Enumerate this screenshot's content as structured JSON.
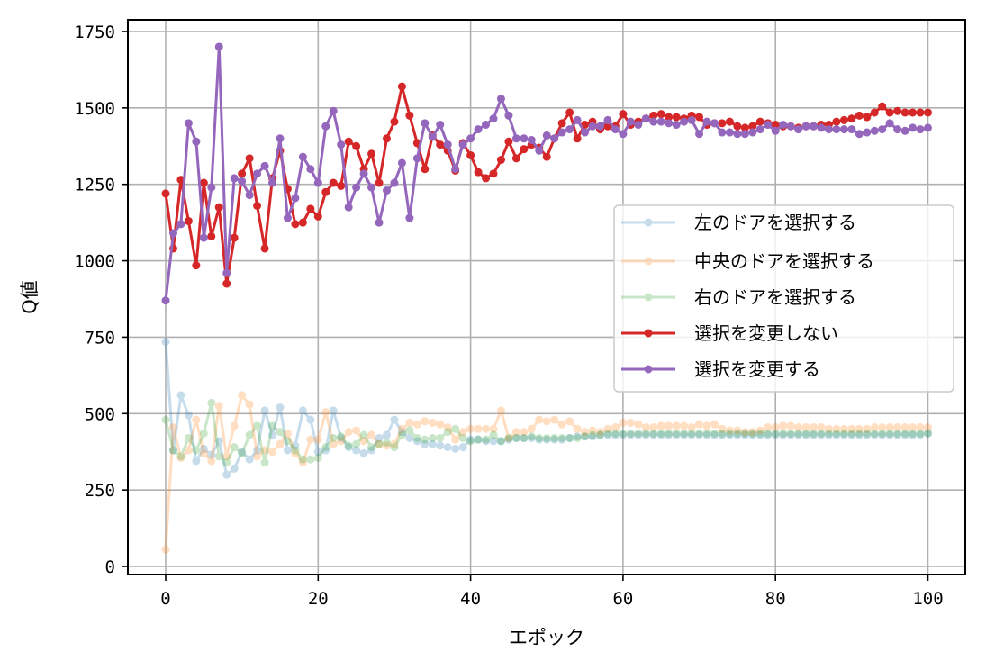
{
  "chart_data": {
    "type": "line",
    "title": "",
    "xlabel": "エポック",
    "ylabel": "Q値",
    "xlim": [
      -5,
      105
    ],
    "ylim": [
      -30,
      1780
    ],
    "xticks": [
      0,
      20,
      40,
      60,
      80,
      100
    ],
    "xtick_labels": [
      "0",
      "20",
      "40",
      "60",
      "80",
      "100"
    ],
    "yticks": [
      0,
      250,
      500,
      750,
      1000,
      1250,
      1500,
      1750
    ],
    "ytick_labels": [
      "0",
      "250",
      "500",
      "750",
      "1000",
      "1250",
      "1500",
      "1750"
    ],
    "grid": true,
    "legend_position": "center right",
    "x": [
      0,
      1,
      2,
      3,
      4,
      5,
      6,
      7,
      8,
      9,
      10,
      11,
      12,
      13,
      14,
      15,
      16,
      17,
      18,
      19,
      20,
      21,
      22,
      23,
      24,
      25,
      26,
      27,
      28,
      29,
      30,
      31,
      32,
      33,
      34,
      35,
      36,
      37,
      38,
      39,
      40,
      41,
      42,
      43,
      44,
      45,
      46,
      47,
      48,
      49,
      50,
      51,
      52,
      53,
      54,
      55,
      56,
      57,
      58,
      59,
      60,
      61,
      62,
      63,
      64,
      65,
      66,
      67,
      68,
      69,
      70,
      71,
      72,
      73,
      74,
      75,
      76,
      77,
      78,
      79,
      80,
      81,
      82,
      83,
      84,
      85,
      86,
      87,
      88,
      89,
      90,
      91,
      92,
      93,
      94,
      95,
      96,
      97,
      98,
      99,
      100
    ],
    "series": [
      {
        "name": "左のドアを選択する",
        "color": "#1f77b4",
        "alpha": 0.25,
        "values": [
          735,
          380,
          560,
          495,
          345,
          385,
          365,
          410,
          300,
          320,
          375,
          350,
          380,
          510,
          430,
          520,
          380,
          395,
          510,
          480,
          375,
          380,
          510,
          420,
          390,
          380,
          370,
          380,
          420,
          430,
          480,
          440,
          420,
          410,
          400,
          400,
          395,
          390,
          385,
          390,
          415,
          415,
          410,
          410,
          410,
          415,
          420,
          420,
          420,
          415,
          415,
          415,
          415,
          420,
          425,
          425,
          425,
          430,
          430,
          430,
          430,
          430,
          430,
          430,
          430,
          430,
          430,
          430,
          430,
          430,
          430,
          430,
          430,
          430,
          430,
          430,
          430,
          430,
          430,
          430,
          430,
          430,
          430,
          430,
          430,
          430,
          430,
          430,
          430,
          430,
          430,
          430,
          430,
          430,
          430,
          430,
          430,
          430,
          430,
          430,
          435
        ]
      },
      {
        "name": "中央のドアを選択する",
        "color": "#ff7f0e",
        "alpha": 0.25,
        "values": [
          55,
          455,
          355,
          380,
          480,
          370,
          345,
          525,
          360,
          460,
          560,
          530,
          360,
          380,
          375,
          400,
          435,
          370,
          340,
          415,
          415,
          505,
          400,
          410,
          440,
          445,
          410,
          430,
          400,
          395,
          400,
          450,
          470,
          465,
          475,
          470,
          465,
          455,
          415,
          440,
          450,
          450,
          450,
          450,
          510,
          420,
          440,
          440,
          450,
          480,
          475,
          480,
          465,
          475,
          450,
          440,
          445,
          440,
          450,
          455,
          470,
          470,
          465,
          455,
          455,
          460,
          460,
          460,
          460,
          455,
          465,
          460,
          465,
          450,
          445,
          445,
          440,
          440,
          445,
          455,
          455,
          460,
          460,
          455,
          455,
          455,
          455,
          450,
          450,
          450,
          450,
          450,
          450,
          455,
          455,
          455,
          455,
          455,
          455,
          455,
          455
        ]
      },
      {
        "name": "右のドアを選択する",
        "color": "#2ca02c",
        "alpha": 0.25,
        "values": [
          480,
          380,
          360,
          420,
          380,
          435,
          535,
          360,
          340,
          390,
          370,
          430,
          460,
          340,
          460,
          440,
          410,
          380,
          350,
          350,
          355,
          390,
          420,
          425,
          395,
          400,
          430,
          390,
          400,
          405,
          390,
          430,
          445,
          420,
          415,
          420,
          420,
          440,
          450,
          420,
          410,
          415,
          415,
          430,
          410,
          420,
          420,
          420,
          425,
          420,
          420,
          420,
          420,
          420,
          420,
          425,
          430,
          430,
          435,
          435,
          435,
          435,
          435,
          435,
          435,
          435,
          435,
          435,
          435,
          435,
          435,
          435,
          435,
          435,
          435,
          435,
          435,
          435,
          435,
          435,
          435,
          435,
          435,
          435,
          435,
          435,
          435,
          435,
          435,
          435,
          435,
          435,
          435,
          435,
          435,
          435,
          435,
          435,
          435,
          435,
          435
        ]
      },
      {
        "name": "選択を変更しない",
        "color": "#d62728",
        "alpha": 1.0,
        "values": [
          1220,
          1040,
          1265,
          1130,
          985,
          1255,
          1080,
          1175,
          925,
          1075,
          1285,
          1335,
          1180,
          1040,
          1270,
          1360,
          1235,
          1120,
          1125,
          1170,
          1145,
          1225,
          1255,
          1245,
          1390,
          1375,
          1300,
          1350,
          1255,
          1400,
          1455,
          1570,
          1475,
          1385,
          1300,
          1410,
          1380,
          1360,
          1295,
          1385,
          1345,
          1290,
          1270,
          1285,
          1330,
          1390,
          1335,
          1365,
          1380,
          1370,
          1340,
          1400,
          1450,
          1485,
          1400,
          1445,
          1455,
          1430,
          1440,
          1440,
          1480,
          1445,
          1455,
          1465,
          1475,
          1480,
          1470,
          1470,
          1465,
          1475,
          1470,
          1445,
          1450,
          1450,
          1455,
          1440,
          1435,
          1440,
          1455,
          1450,
          1445,
          1440,
          1440,
          1435,
          1440,
          1440,
          1445,
          1445,
          1455,
          1460,
          1465,
          1475,
          1470,
          1485,
          1505,
          1485,
          1490,
          1485,
          1485,
          1485,
          1485
        ]
      },
      {
        "name": "選択を変更する",
        "color": "#9467bd",
        "alpha": 1.0,
        "values": [
          870,
          1090,
          1120,
          1450,
          1390,
          1075,
          1240,
          1700,
          960,
          1270,
          1260,
          1215,
          1285,
          1310,
          1255,
          1400,
          1140,
          1205,
          1340,
          1300,
          1255,
          1440,
          1490,
          1380,
          1175,
          1240,
          1285,
          1240,
          1125,
          1230,
          1255,
          1320,
          1140,
          1335,
          1450,
          1405,
          1445,
          1380,
          1300,
          1380,
          1400,
          1430,
          1445,
          1465,
          1530,
          1475,
          1400,
          1400,
          1395,
          1360,
          1410,
          1400,
          1420,
          1430,
          1460,
          1420,
          1440,
          1440,
          1460,
          1430,
          1415,
          1455,
          1445,
          1465,
          1455,
          1455,
          1450,
          1445,
          1455,
          1460,
          1415,
          1455,
          1450,
          1420,
          1420,
          1415,
          1415,
          1420,
          1430,
          1445,
          1425,
          1445,
          1440,
          1430,
          1440,
          1440,
          1435,
          1430,
          1430,
          1430,
          1430,
          1415,
          1420,
          1425,
          1430,
          1450,
          1430,
          1425,
          1435,
          1430,
          1435
        ]
      }
    ]
  },
  "legend": {
    "items": [
      {
        "label": "左のドアを選択する"
      },
      {
        "label": "中央のドアを選択する"
      },
      {
        "label": "右のドアを選択する"
      },
      {
        "label": "選択を変更しない"
      },
      {
        "label": "選択を変更する"
      }
    ]
  }
}
